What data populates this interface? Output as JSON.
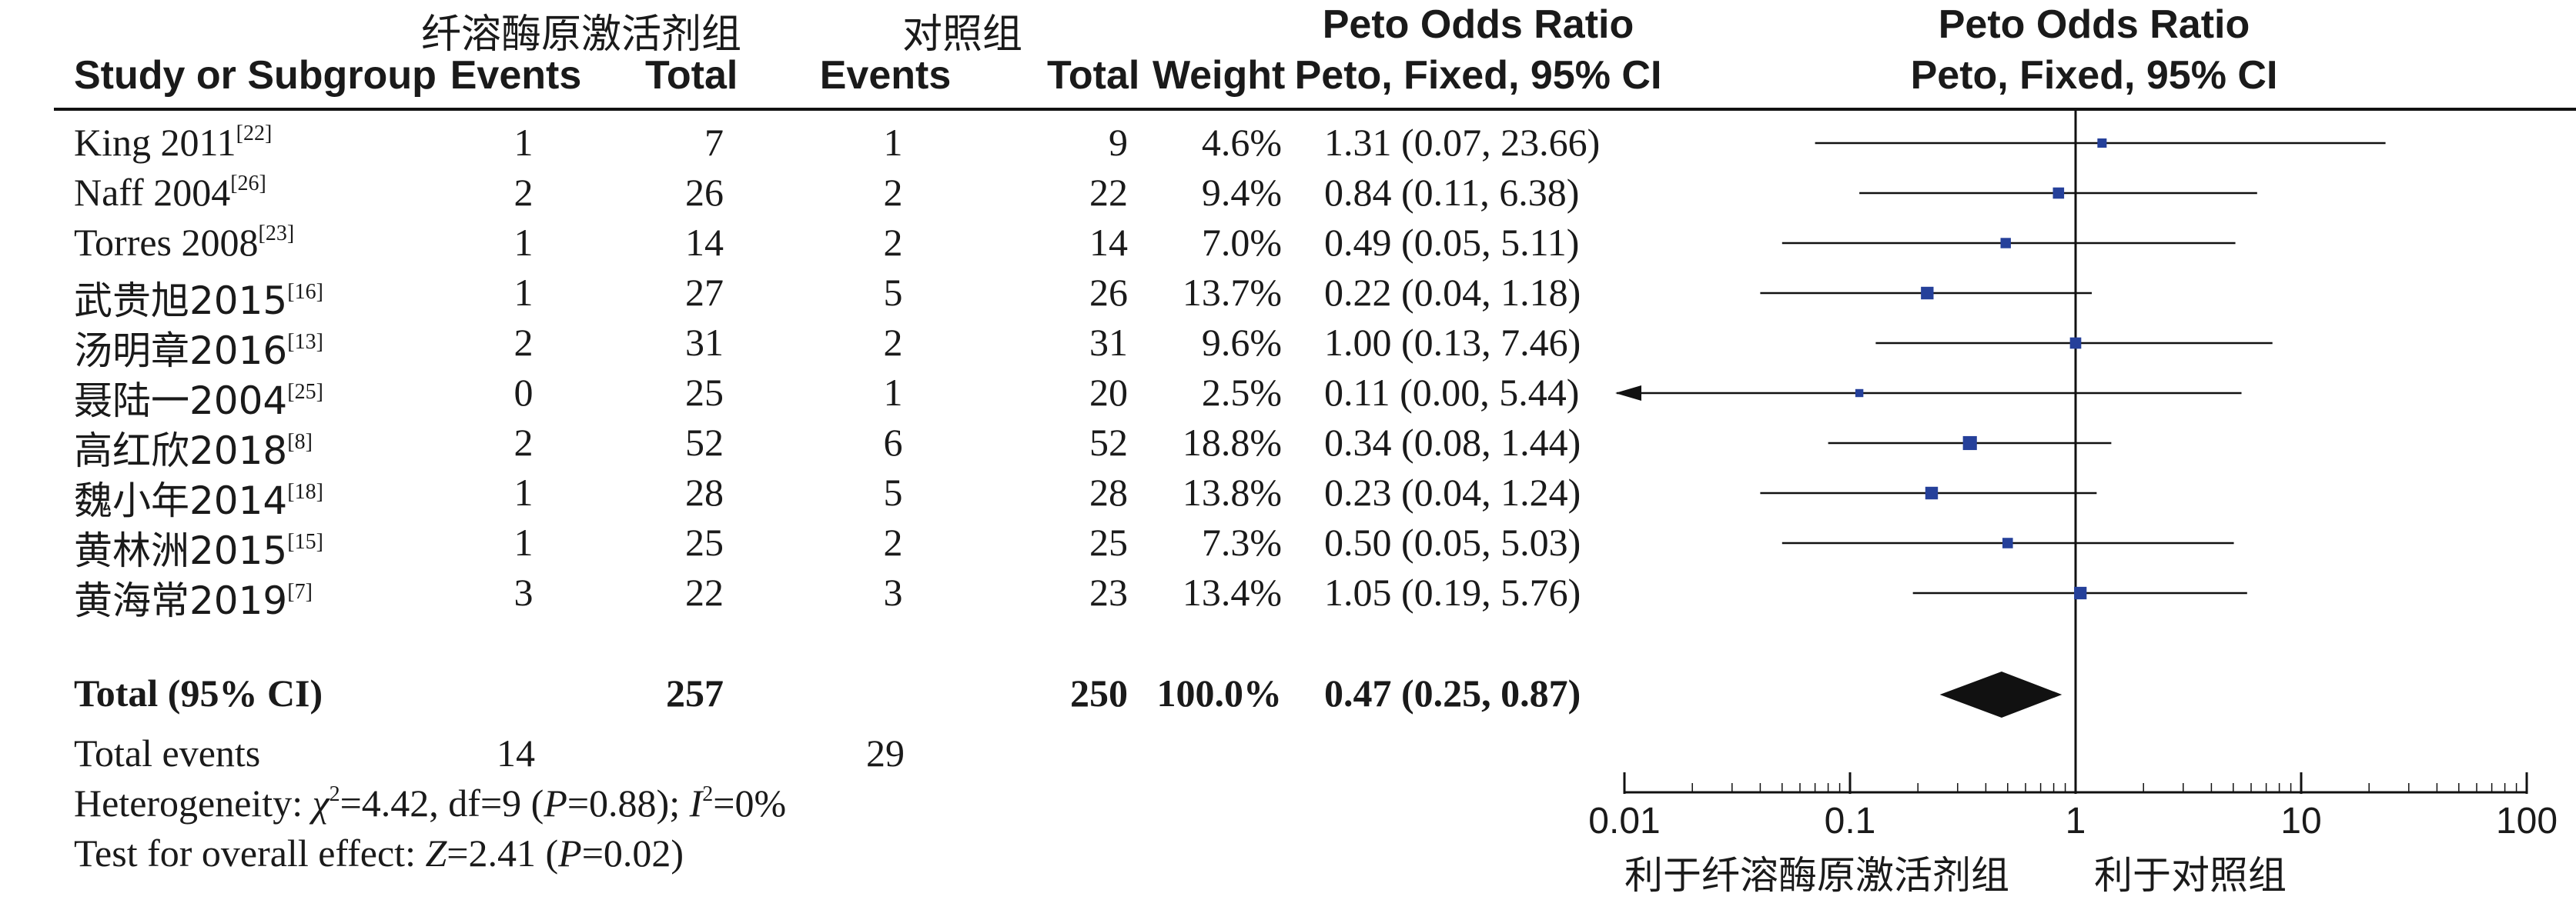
{
  "header": {
    "group_experimental": "纤溶酶原激活剂组",
    "group_control": "对照组",
    "or_title_table": "Peto Odds Ratio",
    "or_sub_table": "Peto, Fixed, 95% CI",
    "or_title_plot": "Peto Odds Ratio",
    "or_sub_plot": "Peto, Fixed, 95% CI",
    "study": "Study or Subgroup",
    "events_exp": "Events",
    "total_exp": "Total",
    "events_ctl": "Events",
    "total_ctl": "Total",
    "weight": "Weight"
  },
  "studies": [
    {
      "name": "King 2011",
      "ref": "[22]",
      "e1": "1",
      "t1": "7",
      "e2": "1",
      "t2": "9",
      "weight": "4.6%",
      "ci": "1.31 (0.07, 23.66)"
    },
    {
      "name": "Naff 2004",
      "ref": "[26]",
      "e1": "2",
      "t1": "26",
      "e2": "2",
      "t2": "22",
      "weight": "9.4%",
      "ci": "0.84 (0.11, 6.38)"
    },
    {
      "name": "Torres 2008",
      "ref": "[23]",
      "e1": "1",
      "t1": "14",
      "e2": "2",
      "t2": "14",
      "weight": "7.0%",
      "ci": "0.49 (0.05, 5.11)"
    },
    {
      "name": "武贵旭2015",
      "ref": "[16]",
      "e1": "1",
      "t1": "27",
      "e2": "5",
      "t2": "26",
      "weight": "13.7%",
      "ci": "0.22 (0.04, 1.18)"
    },
    {
      "name": "汤明章2016",
      "ref": "[13]",
      "e1": "2",
      "t1": "31",
      "e2": "2",
      "t2": "31",
      "weight": "9.6%",
      "ci": "1.00 (0.13, 7.46)"
    },
    {
      "name": "聂陆一2004",
      "ref": "[25]",
      "e1": "0",
      "t1": "25",
      "e2": "1",
      "t2": "20",
      "weight": "2.5%",
      "ci": "0.11 (0.00, 5.44)"
    },
    {
      "name": "高红欣2018",
      "ref": "[8]",
      "e1": "2",
      "t1": "52",
      "e2": "6",
      "t2": "52",
      "weight": "18.8%",
      "ci": "0.34 (0.08, 1.44)"
    },
    {
      "name": "魏小年2014",
      "ref": "[18]",
      "e1": "1",
      "t1": "28",
      "e2": "5",
      "t2": "28",
      "weight": "13.8%",
      "ci": "0.23 (0.04, 1.24)"
    },
    {
      "name": "黄林洲2015",
      "ref": "[15]",
      "e1": "1",
      "t1": "25",
      "e2": "2",
      "t2": "25",
      "weight": "7.3%",
      "ci": "0.50 (0.05, 5.03)"
    },
    {
      "name": "黄海常2019",
      "ref": "[7]",
      "e1": "3",
      "t1": "22",
      "e2": "3",
      "t2": "23",
      "weight": "13.4%",
      "ci": "1.05 (0.19, 5.76)"
    }
  ],
  "total": {
    "label": "Total (95% CI)",
    "t1": "257",
    "t2": "250",
    "weight": "100.0%",
    "ci": "0.47 (0.25, 0.87)"
  },
  "total_events": {
    "label": "Total events",
    "e1": "14",
    "e2": "29"
  },
  "heterogeneity": {
    "prefix": "Heterogeneity: ",
    "chi": "χ",
    "chi_sup": "2",
    "chi_val": "=4.42, df=9 (",
    "p_label": "P",
    "p_val": "=0.88); ",
    "i_label": "I",
    "i_sup": "2",
    "i_val": "=0%"
  },
  "overall_effect": {
    "prefix": "Test for overall effect: ",
    "z_label": "Z",
    "z_val": "=2.41 (",
    "p_label": "P",
    "p_val": "=0.02)"
  },
  "axis": {
    "ticks": [
      "0.01",
      "0.1",
      "1",
      "10",
      "100"
    ],
    "favours_left": "利于纤溶酶原激活剂组",
    "favours_right": "利于对照组"
  },
  "colors": {
    "marker": "#25409a",
    "line": "#111111",
    "diamond": "#111111"
  },
  "chart_data": {
    "type": "forest",
    "scale": "log",
    "xlim": [
      0.01,
      100
    ],
    "null_value": 1,
    "studies": [
      {
        "or": 1.31,
        "lo": 0.07,
        "hi": 23.66,
        "weight": 4.6
      },
      {
        "or": 0.84,
        "lo": 0.11,
        "hi": 6.38,
        "weight": 9.4
      },
      {
        "or": 0.49,
        "lo": 0.05,
        "hi": 5.11,
        "weight": 7.0
      },
      {
        "or": 0.22,
        "lo": 0.04,
        "hi": 1.18,
        "weight": 13.7
      },
      {
        "or": 1.0,
        "lo": 0.13,
        "hi": 7.46,
        "weight": 9.6
      },
      {
        "or": 0.11,
        "lo": 0.0,
        "hi": 5.44,
        "weight": 2.5
      },
      {
        "or": 0.34,
        "lo": 0.08,
        "hi": 1.44,
        "weight": 18.8
      },
      {
        "or": 0.23,
        "lo": 0.04,
        "hi": 1.24,
        "weight": 13.8
      },
      {
        "or": 0.5,
        "lo": 0.05,
        "hi": 5.03,
        "weight": 7.3
      },
      {
        "or": 1.05,
        "lo": 0.19,
        "hi": 5.76,
        "weight": 13.4
      }
    ],
    "pooled": {
      "or": 0.47,
      "lo": 0.25,
      "hi": 0.87
    }
  }
}
